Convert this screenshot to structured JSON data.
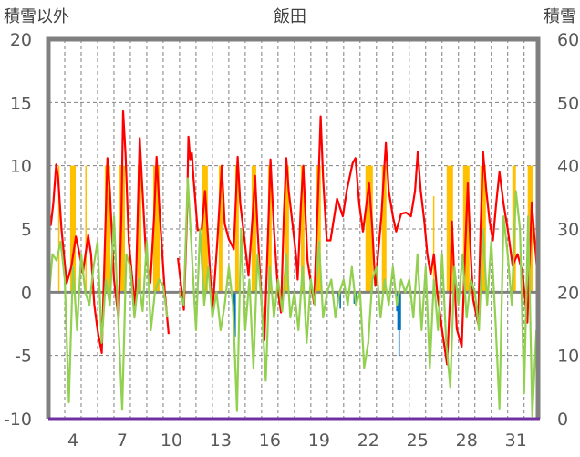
{
  "chart_data": {
    "type": "line",
    "title": "飯田",
    "ylabel_left": "積雪以外",
    "ylabel_right": "積雪",
    "ylim_left": [
      -10,
      20
    ],
    "ylim_right": [
      0,
      60
    ],
    "yticks_left": [
      "20",
      "15",
      "10",
      "5",
      "0",
      "-5",
      "-10"
    ],
    "yticks_left_values": [
      20,
      15,
      10,
      5,
      0,
      -5,
      -10
    ],
    "yticks_right": [
      "60",
      "50",
      "40",
      "30",
      "20",
      "10",
      "0"
    ],
    "yticks_right_values": [
      60,
      50,
      40,
      30,
      20,
      10,
      0
    ],
    "xlim": [
      3,
      32.85
    ],
    "xticks": [
      "4",
      "7",
      "10",
      "13",
      "16",
      "19",
      "22",
      "25",
      "28",
      "31"
    ],
    "xtick_values": [
      4,
      7,
      10,
      13,
      16,
      19,
      22,
      25,
      28,
      31
    ],
    "grid": true,
    "colors": {
      "temperature": "#ff0000",
      "green_series": "#92d050",
      "sunshine": "#ffc000",
      "precipitation": "#0070c0",
      "snow_depth": "#7030a0",
      "zero_line": "#808080",
      "frame": "#808080"
    },
    "series": [
      {
        "name": "red",
        "axis": "left",
        "points": [
          [
            3.0,
            7.0
          ],
          [
            3.15,
            5.3
          ],
          [
            3.3,
            7
          ],
          [
            3.48,
            10.1
          ],
          [
            3.6,
            9
          ],
          [
            3.8,
            5
          ],
          [
            4.12,
            0.7
          ],
          [
            4.4,
            2
          ],
          [
            4.68,
            4.4
          ],
          [
            4.9,
            3
          ],
          [
            5.1,
            1.5
          ],
          [
            5.43,
            4.5
          ],
          [
            5.6,
            3
          ],
          [
            5.8,
            -1
          ],
          [
            6.0,
            -3
          ],
          [
            6.26,
            -4.8
          ],
          [
            6.45,
            4
          ],
          [
            6.6,
            10.6
          ],
          [
            6.75,
            8
          ],
          [
            7.0,
            1
          ],
          [
            7.28,
            -2.1
          ],
          [
            7.45,
            6
          ],
          [
            7.56,
            14.3
          ],
          [
            7.7,
            11
          ],
          [
            7.9,
            4
          ],
          [
            8.3,
            -1.4
          ],
          [
            8.45,
            6
          ],
          [
            8.57,
            12.2
          ],
          [
            8.7,
            9
          ],
          [
            8.95,
            3
          ],
          [
            9.22,
            0.75
          ],
          [
            9.45,
            6
          ],
          [
            9.6,
            10.7
          ],
          [
            9.8,
            6
          ],
          [
            10.1,
            0
          ],
          [
            10.33,
            -3.3
          ],
          null,
          [
            10.9,
            2.7
          ],
          [
            11.26,
            -1.4
          ],
          [
            11.45,
            6
          ],
          [
            11.54,
            12.3
          ],
          [
            11.65,
            10.5
          ],
          [
            11.75,
            11
          ],
          [
            11.85,
            9
          ],
          [
            12.1,
            4.9
          ],
          [
            12.35,
            5
          ],
          [
            12.55,
            8
          ],
          [
            12.75,
            4
          ],
          [
            13.0,
            -1.6
          ],
          [
            13.3,
            4
          ],
          [
            13.57,
            10.0
          ],
          [
            13.75,
            5.4
          ],
          [
            14.0,
            4.2
          ],
          [
            14.3,
            3.4
          ],
          [
            14.54,
            10.7
          ],
          [
            14.7,
            7
          ],
          [
            14.9,
            4.8
          ],
          [
            15.2,
            1.3
          ],
          [
            15.45,
            6
          ],
          [
            15.6,
            9.2
          ],
          [
            15.75,
            5
          ],
          [
            16.0,
            -1
          ],
          [
            16.17,
            -3.8
          ],
          [
            16.4,
            5
          ],
          [
            16.54,
            10.5
          ],
          [
            16.75,
            5
          ],
          [
            17.0,
            0
          ],
          [
            17.18,
            -1.6
          ],
          [
            17.35,
            6
          ],
          [
            17.5,
            10.6
          ],
          [
            17.65,
            8
          ],
          [
            17.83,
            6.0
          ],
          [
            18.1,
            2.9
          ],
          [
            18.2,
            1.0
          ],
          [
            18.4,
            7
          ],
          [
            18.54,
            10.0
          ],
          [
            18.8,
            2.5
          ],
          [
            19.2,
            -0.9
          ],
          [
            19.45,
            8
          ],
          [
            19.6,
            13.9
          ],
          [
            19.75,
            9
          ],
          [
            19.97,
            4.1
          ],
          [
            20.2,
            4.1
          ],
          [
            20.6,
            7.4
          ],
          [
            20.95,
            6.0
          ],
          [
            21.2,
            8.1
          ],
          [
            21.55,
            10.2
          ],
          [
            21.72,
            10.6
          ],
          [
            21.95,
            7
          ],
          [
            22.18,
            4.8
          ],
          [
            22.55,
            8.6
          ],
          [
            22.75,
            5
          ],
          [
            22.93,
            0.5
          ],
          [
            23.3,
            6
          ],
          [
            23.57,
            11.8
          ],
          [
            23.75,
            8
          ],
          [
            24.0,
            6.0
          ],
          [
            24.2,
            4.8
          ],
          [
            24.5,
            6.2
          ],
          [
            24.8,
            6.3
          ],
          [
            25.1,
            6.0
          ],
          [
            25.35,
            8
          ],
          [
            25.52,
            11.1
          ],
          [
            25.7,
            8
          ],
          [
            25.9,
            5.8
          ],
          [
            26.1,
            3
          ],
          [
            26.3,
            1.4
          ],
          [
            26.5,
            3
          ],
          [
            26.7,
            0
          ],
          [
            27.0,
            -3
          ],
          [
            27.3,
            -5.7
          ],
          [
            27.5,
            0
          ],
          [
            27.6,
            5.6
          ],
          [
            27.75,
            1
          ],
          [
            27.9,
            -2.9
          ],
          [
            28.2,
            -4.3
          ],
          [
            28.4,
            3
          ],
          [
            28.57,
            8.6
          ],
          [
            28.75,
            3
          ],
          [
            28.9,
            -0.6
          ],
          [
            29.2,
            -2.5
          ],
          [
            29.35,
            5
          ],
          [
            29.5,
            11.1
          ],
          [
            29.7,
            8
          ],
          [
            29.9,
            5.6
          ],
          [
            30.1,
            4.1
          ],
          [
            30.3,
            7
          ],
          [
            30.5,
            9.5
          ],
          [
            30.75,
            7
          ],
          [
            31.0,
            5.0
          ],
          [
            31.3,
            2.1
          ],
          [
            31.6,
            3
          ],
          [
            31.9,
            1.6
          ],
          [
            32.2,
            -2.4
          ],
          [
            32.47,
            7.1
          ],
          [
            32.65,
            4
          ],
          [
            32.85,
            0.9
          ]
        ]
      },
      {
        "name": "green",
        "axis": "left",
        "t_start": 3.0,
        "t_step": 0.25,
        "values": [
          -1,
          3,
          2.5,
          4,
          1,
          -8.7,
          2,
          -3,
          3,
          0,
          -1,
          2,
          4,
          -4,
          1,
          -1,
          6,
          -2,
          -9.3,
          3,
          2,
          -2,
          1,
          -1.5,
          4,
          -3,
          0,
          1,
          0.5,
          -2,
          null,
          null,
          0,
          -1,
          9,
          3,
          -3,
          5,
          -1,
          2,
          -2,
          0,
          -3,
          -1,
          2,
          -1,
          -9.4,
          5,
          -3,
          1,
          -6,
          3,
          -1,
          -7,
          2,
          -2,
          1,
          -1.5,
          3,
          -2,
          0,
          -3,
          2,
          -4,
          1,
          -1,
          4,
          -2,
          0,
          1,
          -2,
          0,
          1,
          -1,
          2,
          -1,
          0,
          -6,
          -4,
          1,
          2,
          -2,
          1,
          -1,
          2,
          -1,
          1,
          0,
          1,
          -2,
          3,
          -3,
          2,
          -6,
          1,
          -3,
          3,
          -4,
          -7.5,
          2,
          -1,
          3,
          -2,
          1,
          0,
          -3,
          5,
          -1,
          4,
          -2,
          -9.2,
          6,
          3,
          -1,
          8,
          5,
          -8,
          6,
          -9.8,
          -3
        ]
      },
      {
        "name": "sunshine",
        "type": "bar",
        "axis": "left",
        "intervals": [
          [
            3.6,
            3.65,
            10
          ],
          [
            4.33,
            4.67,
            10
          ],
          [
            5.25,
            5.3,
            10
          ],
          [
            6.44,
            6.78,
            10
          ],
          [
            7.33,
            7.67,
            10
          ],
          [
            8.44,
            8.67,
            10
          ],
          [
            9.39,
            9.78,
            10
          ],
          [
            12.39,
            12.72,
            10
          ],
          [
            13.39,
            13.61,
            10
          ],
          [
            14.39,
            14.61,
            10
          ],
          [
            15.39,
            15.67,
            10
          ],
          [
            16.39,
            16.61,
            10
          ],
          [
            17.39,
            17.67,
            10
          ],
          [
            18.39,
            18.61,
            10
          ],
          [
            19.33,
            19.61,
            10
          ],
          [
            22.33,
            22.78,
            10
          ],
          [
            23.33,
            23.61,
            10
          ],
          [
            26.45,
            26.5,
            7.6
          ],
          [
            27.28,
            27.67,
            10
          ],
          [
            28.28,
            28.67,
            10
          ],
          [
            29.33,
            29.67,
            10
          ],
          [
            31.28,
            31.5,
            10
          ],
          [
            32.22,
            32.56,
            10
          ]
        ]
      },
      {
        "name": "precipitation",
        "type": "bar",
        "axis": "left",
        "points": [
          [
            14.2,
            -1.5
          ],
          [
            14.27,
            -2.5
          ],
          [
            14.34,
            -3.5
          ],
          [
            20.6,
            -0.6
          ],
          [
            20.75,
            -1.3
          ],
          [
            21.6,
            -0.9
          ],
          [
            21.7,
            -1.0
          ],
          [
            24.2,
            -1.5
          ],
          [
            24.27,
            -3
          ],
          [
            24.34,
            -5
          ],
          [
            24.41,
            -3
          ]
        ]
      },
      {
        "name": "snow_depth",
        "axis": "right",
        "value": 0
      }
    ]
  }
}
